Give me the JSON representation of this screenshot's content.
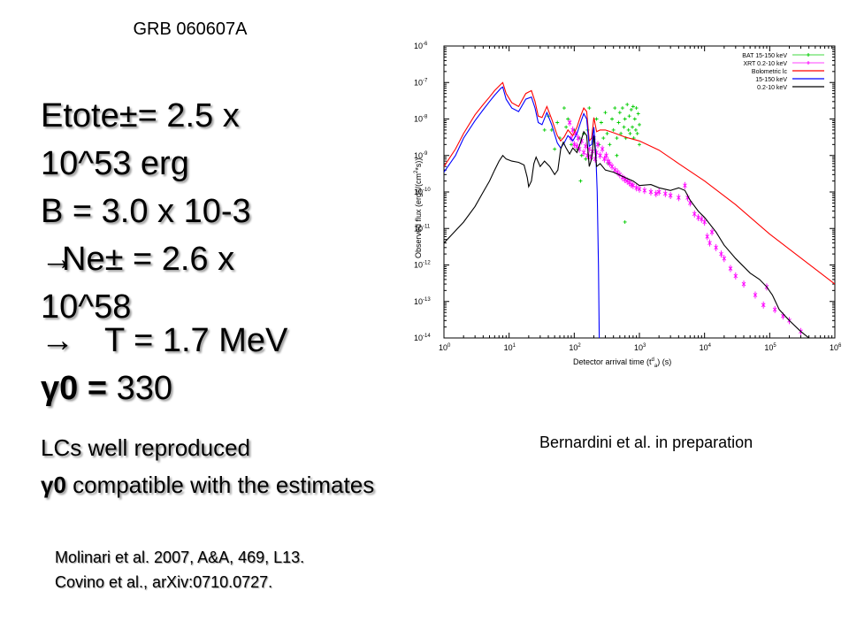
{
  "slide": {
    "title": "GRB 060607A",
    "line1": "Etote±= 2.5 x",
    "line2": "10^53 erg",
    "line3": "B = 3.0 x 10-3",
    "line4_arrow": "→",
    "line4_text": "Ne± = 2.6 x",
    "line5": "10^58",
    "line6_arrow": "→",
    "line6_text": "T = 1.7 MeV",
    "line7_sym": "γ0 =",
    "line7_val": " 330",
    "conclusion1": "LCs well reproduced",
    "conclusion2_sym": "γ0",
    "conclusion2_text": " compatible with the estimates",
    "ref1": "Molinari et al. 2007, A&A, 469, L13.",
    "ref2": "Covino et al., arXiv:0710.0727.",
    "credit": "Bernardini et al. in preparation"
  },
  "chart_data": {
    "type": "line",
    "title": "",
    "xlabel": "Detector arrival time (t",
    "xlabel_sup": "d",
    "xlabel_sub": "a",
    "xlabel_tail": ") (s)",
    "ylabel": "Observed flux (ergs/(cm",
    "ylabel_sup": "2",
    "ylabel_tail": "*s))",
    "xscale": "log",
    "yscale": "log",
    "xlim": [
      1,
      1000000
    ],
    "ylim": [
      1e-14,
      1e-06
    ],
    "x_ticks": [
      {
        "base": "10",
        "exp": "0"
      },
      {
        "base": "10",
        "exp": "1"
      },
      {
        "base": "10",
        "exp": "2"
      },
      {
        "base": "10",
        "exp": "3"
      },
      {
        "base": "10",
        "exp": "4"
      },
      {
        "base": "10",
        "exp": "5"
      },
      {
        "base": "10",
        "exp": "6"
      }
    ],
    "y_ticks": [
      {
        "base": "10",
        "exp": "-14"
      },
      {
        "base": "10",
        "exp": "-13"
      },
      {
        "base": "10",
        "exp": "-12"
      },
      {
        "base": "10",
        "exp": "-11"
      },
      {
        "base": "10",
        "exp": "-10"
      },
      {
        "base": "10",
        "exp": "-9"
      },
      {
        "base": "10",
        "exp": "-8"
      },
      {
        "base": "10",
        "exp": "-7"
      },
      {
        "base": "10",
        "exp": "-6"
      }
    ],
    "legend_position": "top-right",
    "series": [
      {
        "name": "BAT 15-150 keV",
        "color": "#00cc00",
        "style": "points",
        "points": [
          [
            35,
            5e-09
          ],
          [
            40,
            1.2e-08
          ],
          [
            45,
            5e-09
          ],
          [
            50,
            1.5e-09
          ],
          [
            55,
            8e-09
          ],
          [
            60,
            3e-09
          ],
          [
            70,
            2e-08
          ],
          [
            75,
            6e-09
          ],
          [
            80,
            1e-08
          ],
          [
            90,
            2e-09
          ],
          [
            100,
            5e-09
          ],
          [
            110,
            1.5e-09
          ],
          [
            120,
            3e-09
          ],
          [
            130,
            1e-09
          ],
          [
            140,
            4e-09
          ],
          [
            150,
            8e-10
          ],
          [
            160,
            5e-09
          ],
          [
            170,
            2e-08
          ],
          [
            180,
            1e-09
          ],
          [
            200,
            3e-09
          ],
          [
            220,
            1e-08
          ],
          [
            240,
            2e-09
          ],
          [
            260,
            8e-09
          ],
          [
            280,
            3e-09
          ],
          [
            300,
            1.5e-08
          ],
          [
            320,
            4e-09
          ],
          [
            350,
            2e-09
          ],
          [
            380,
            1e-08
          ],
          [
            400,
            5e-09
          ],
          [
            420,
            2e-08
          ],
          [
            450,
            3e-09
          ],
          [
            480,
            8e-09
          ],
          [
            500,
            1.5e-08
          ],
          [
            520,
            4e-09
          ],
          [
            550,
            2e-08
          ],
          [
            580,
            6e-09
          ],
          [
            600,
            1e-08
          ],
          [
            620,
            3e-09
          ],
          [
            650,
            2.5e-08
          ],
          [
            680,
            5e-09
          ],
          [
            700,
            1.2e-08
          ],
          [
            720,
            4e-09
          ],
          [
            750,
            1.8e-08
          ],
          [
            780,
            6e-09
          ],
          [
            800,
            2.2e-08
          ],
          [
            820,
            3e-09
          ],
          [
            850,
            1e-08
          ],
          [
            880,
            5e-09
          ],
          [
            900,
            2e-08
          ],
          [
            930,
            4e-09
          ],
          [
            960,
            1.4e-08
          ],
          [
            1000,
            7e-09
          ],
          [
            330,
            6e-10
          ],
          [
            600,
            1.5e-11
          ],
          [
            125,
            2e-10
          ],
          [
            1000,
            2e-09
          ],
          [
            450,
            1e-09
          ]
        ]
      },
      {
        "name": "XRT 0.2-10 keV",
        "color": "#ff00ff",
        "style": "points",
        "points": [
          [
            85,
            8e-09
          ],
          [
            90,
            3e-09
          ],
          [
            95,
            5e-09
          ],
          [
            100,
            2e-09
          ],
          [
            105,
            4e-09
          ],
          [
            110,
            1.8e-09
          ],
          [
            115,
            3e-09
          ],
          [
            120,
            1.5e-09
          ],
          [
            130,
            2.5e-09
          ],
          [
            140,
            1.2e-09
          ],
          [
            150,
            1.8e-09
          ],
          [
            160,
            1e-09
          ],
          [
            170,
            1.5e-09
          ],
          [
            180,
            9e-10
          ],
          [
            190,
            1.3e-09
          ],
          [
            200,
            3e-09
          ],
          [
            210,
            8e-10
          ],
          [
            220,
            1.2e-09
          ],
          [
            230,
            2e-09
          ],
          [
            250,
            1e-09
          ],
          [
            270,
            1.5e-09
          ],
          [
            290,
            8e-10
          ],
          [
            310,
            1e-09
          ],
          [
            330,
            7e-10
          ],
          [
            350,
            6e-10
          ],
          [
            380,
            5e-10
          ],
          [
            420,
            4e-10
          ],
          [
            460,
            3.5e-10
          ],
          [
            500,
            3e-10
          ],
          [
            550,
            2.5e-10
          ],
          [
            600,
            2.2e-10
          ],
          [
            650,
            2e-10
          ],
          [
            700,
            1.8e-10
          ],
          [
            750,
            1.6e-10
          ],
          [
            800,
            1.5e-10
          ],
          [
            900,
            1.3e-10
          ],
          [
            1000,
            1.2e-10
          ],
          [
            1200,
            1.1e-10
          ],
          [
            1500,
            1e-10
          ],
          [
            1800,
            9e-11
          ],
          [
            2000,
            1e-10
          ],
          [
            2500,
            9e-11
          ],
          [
            3000,
            8e-11
          ],
          [
            4000,
            7e-11
          ],
          [
            5000,
            1.5e-10
          ],
          [
            5500,
            7e-11
          ],
          [
            6000,
            5e-11
          ],
          [
            7000,
            2.5e-11
          ],
          [
            8000,
            2e-11
          ],
          [
            9000,
            1.8e-11
          ],
          [
            10000,
            1.5e-11
          ],
          [
            11000,
            6e-12
          ],
          [
            12000,
            4e-12
          ],
          [
            13000,
            8e-12
          ],
          [
            15000,
            3e-12
          ],
          [
            18000,
            2e-12
          ],
          [
            20000,
            1.5e-12
          ],
          [
            25000,
            8e-13
          ],
          [
            30000,
            5e-13
          ],
          [
            40000,
            3e-13
          ],
          [
            60000,
            1.5e-13
          ],
          [
            80000,
            8e-14
          ],
          [
            90000,
            2.5e-13
          ],
          [
            120000,
            6e-14
          ],
          [
            160000,
            4e-14
          ],
          [
            200000,
            3e-14
          ],
          [
            300000,
            1.5e-14
          ]
        ]
      },
      {
        "name": "Bolometric lc",
        "color": "#ff0000",
        "style": "line",
        "points": [
          [
            1,
            5e-10
          ],
          [
            1.5,
            1.5e-09
          ],
          [
            2,
            4e-09
          ],
          [
            3,
            1.3e-08
          ],
          [
            4,
            2.5e-08
          ],
          [
            5,
            4e-08
          ],
          [
            6,
            6e-08
          ],
          [
            7.5,
            9e-08
          ],
          [
            8,
            1e-07
          ],
          [
            9,
            5e-08
          ],
          [
            11,
            2.8e-08
          ],
          [
            14,
            2.2e-08
          ],
          [
            18,
            5e-08
          ],
          [
            22,
            6e-08
          ],
          [
            25,
            3e-08
          ],
          [
            28,
            1.2e-08
          ],
          [
            32,
            1.1e-08
          ],
          [
            38,
            2.2e-08
          ],
          [
            45,
            1e-08
          ],
          [
            55,
            3.5e-09
          ],
          [
            62,
            2.5e-09
          ],
          [
            70,
            3.2e-09
          ],
          [
            80,
            5e-09
          ],
          [
            95,
            3.5e-09
          ],
          [
            110,
            6e-09
          ],
          [
            125,
            1.2e-08
          ],
          [
            140,
            2e-08
          ],
          [
            155,
            1.6e-08
          ],
          [
            170,
            2.5e-09
          ],
          [
            185,
            3e-09
          ],
          [
            200,
            1.1e-08
          ],
          [
            220,
            4.5e-09
          ],
          [
            250,
            5e-09
          ],
          [
            300,
            5e-09
          ],
          [
            400,
            4.2e-09
          ],
          [
            600,
            3.2e-09
          ],
          [
            1000,
            2.5e-09
          ],
          [
            2000,
            1.4e-09
          ],
          [
            4000,
            6e-10
          ],
          [
            10000,
            2e-10
          ],
          [
            30000,
            4.5e-11
          ],
          [
            100000,
            7e-12
          ],
          [
            1000000,
            3e-13
          ]
        ]
      },
      {
        "name": "15-150 keV",
        "color": "#0000ff",
        "style": "line",
        "points": [
          [
            1,
            3.5e-10
          ],
          [
            1.5,
            1e-09
          ],
          [
            2,
            3e-09
          ],
          [
            3,
            9e-09
          ],
          [
            4,
            1.8e-08
          ],
          [
            5,
            3e-08
          ],
          [
            6,
            4.5e-08
          ],
          [
            7.5,
            7e-08
          ],
          [
            8,
            7.5e-08
          ],
          [
            9,
            3.5e-08
          ],
          [
            11,
            2e-08
          ],
          [
            14,
            1.6e-08
          ],
          [
            18,
            3.5e-08
          ],
          [
            22,
            4e-08
          ],
          [
            25,
            2e-08
          ],
          [
            28,
            8e-09
          ],
          [
            32,
            7e-09
          ],
          [
            38,
            1.5e-08
          ],
          [
            45,
            7e-09
          ],
          [
            55,
            2.2e-09
          ],
          [
            62,
            1.6e-09
          ],
          [
            70,
            2.2e-09
          ],
          [
            80,
            3.5e-09
          ],
          [
            95,
            2.5e-09
          ],
          [
            110,
            4e-09
          ],
          [
            125,
            8e-09
          ],
          [
            140,
            1.4e-08
          ],
          [
            155,
            1e-08
          ],
          [
            170,
            1.8e-09
          ],
          [
            185,
            2e-09
          ],
          [
            200,
            6e-09
          ],
          [
            215,
            1e-09
          ],
          [
            225,
            1e-10
          ],
          [
            235,
            1e-12
          ],
          [
            242,
            1e-14
          ]
        ]
      },
      {
        "name": "0.2-10 keV",
        "color": "#000000",
        "style": "line",
        "points": [
          [
            1,
            4e-12
          ],
          [
            2,
            1.5e-11
          ],
          [
            3,
            4e-11
          ],
          [
            4,
            1e-10
          ],
          [
            5,
            2e-10
          ],
          [
            6,
            4e-10
          ],
          [
            7,
            7e-10
          ],
          [
            8,
            1e-09
          ],
          [
            9,
            8e-10
          ],
          [
            11,
            7e-10
          ],
          [
            14,
            6.5e-10
          ],
          [
            17,
            5.5e-10
          ],
          [
            19,
            2.5e-10
          ],
          [
            20,
            1.4e-10
          ],
          [
            22,
            2e-10
          ],
          [
            24,
            6e-10
          ],
          [
            26,
            9e-10
          ],
          [
            30,
            5e-10
          ],
          [
            35,
            7e-10
          ],
          [
            42,
            5e-10
          ],
          [
            50,
            3e-10
          ],
          [
            56,
            4e-10
          ],
          [
            62,
            1.5e-09
          ],
          [
            68,
            2.3e-09
          ],
          [
            75,
            1.6e-09
          ],
          [
            85,
            1.1e-09
          ],
          [
            95,
            1.6e-09
          ],
          [
            110,
            1.2e-09
          ],
          [
            125,
            2.3e-09
          ],
          [
            140,
            4.5e-09
          ],
          [
            155,
            3.5e-09
          ],
          [
            170,
            5e-10
          ],
          [
            185,
            8e-10
          ],
          [
            200,
            3.5e-09
          ],
          [
            220,
            5e-10
          ],
          [
            250,
            6e-10
          ],
          [
            300,
            4e-10
          ],
          [
            400,
            3.5e-10
          ],
          [
            600,
            2.5e-10
          ],
          [
            800,
            2e-10
          ],
          [
            1000,
            1.5e-10
          ],
          [
            1500,
            1.6e-10
          ],
          [
            2000,
            1.3e-10
          ],
          [
            3000,
            1.1e-10
          ],
          [
            4000,
            1.3e-10
          ],
          [
            5000,
            1.1e-10
          ],
          [
            6000,
            6e-11
          ],
          [
            8000,
            3e-11
          ],
          [
            10000,
            2e-11
          ],
          [
            15000,
            8e-12
          ],
          [
            20000,
            3.5e-12
          ],
          [
            30000,
            1.5e-12
          ],
          [
            50000,
            6e-13
          ],
          [
            70000,
            4e-13
          ],
          [
            90000,
            2.5e-13
          ],
          [
            110000,
            1.5e-13
          ],
          [
            140000,
            6e-14
          ],
          [
            200000,
            3e-14
          ],
          [
            300000,
            1.5e-14
          ],
          [
            400000,
            1e-14
          ]
        ]
      }
    ]
  }
}
